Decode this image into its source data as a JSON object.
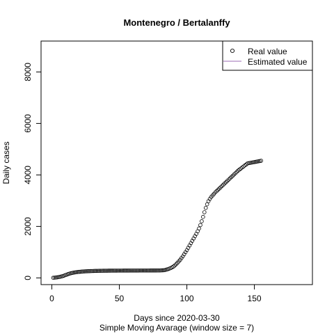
{
  "chart_data": {
    "type": "scatter",
    "title": "Montenegro / Bertalanffy",
    "xlabel": "Days since 2020-03-30",
    "subtitle": "Simple Moving Avarage (window size = 7)",
    "ylabel": "Daily cases",
    "xlim": [
      -8,
      193
    ],
    "ylim": [
      -260,
      9200
    ],
    "xticks": [
      0,
      50,
      100,
      150
    ],
    "yticks": [
      0,
      2000,
      4000,
      6000,
      8000
    ],
    "xtick_labels": [
      "0",
      "50",
      "100",
      "150"
    ],
    "ytick_labels": [
      "0",
      "2000",
      "4000",
      "6000",
      "8000"
    ],
    "grid": false,
    "legend_position": "top-right",
    "series": [
      {
        "name": "Real value",
        "marker": "open-circle",
        "color": "#000000",
        "x": [
          1,
          2,
          3,
          4,
          5,
          6,
          7,
          8,
          9,
          10,
          11,
          12,
          13,
          14,
          15,
          16,
          17,
          18,
          19,
          20,
          21,
          22,
          23,
          24,
          25,
          26,
          27,
          28,
          29,
          30,
          31,
          32,
          33,
          34,
          35,
          36,
          37,
          38,
          39,
          40,
          41,
          42,
          43,
          44,
          45,
          46,
          47,
          48,
          49,
          50,
          51,
          52,
          53,
          54,
          55,
          56,
          57,
          58,
          59,
          60,
          61,
          62,
          63,
          64,
          65,
          66,
          67,
          68,
          69,
          70,
          71,
          72,
          73,
          74,
          75,
          76,
          77,
          78,
          79,
          80,
          81,
          82,
          83,
          84,
          85,
          86,
          87,
          88,
          89,
          90,
          91,
          92,
          93,
          94,
          95,
          96,
          97,
          98,
          99,
          100,
          101,
          102,
          103,
          104,
          105,
          106,
          107,
          108,
          109,
          110,
          111,
          112,
          113,
          114,
          115,
          116,
          117,
          118,
          119,
          120,
          121,
          122,
          123,
          124,
          125,
          126,
          127,
          128,
          129,
          130,
          131,
          132,
          133,
          134,
          135,
          136,
          137,
          138,
          139,
          140,
          141,
          142,
          143,
          144,
          145,
          146,
          147,
          148,
          149,
          150,
          151,
          152,
          153,
          154,
          155
        ],
        "y": [
          5,
          10,
          15,
          22,
          31,
          42,
          55,
          70,
          88,
          108,
          128,
          148,
          165,
          180,
          193,
          204,
          213,
          221,
          228,
          234,
          239,
          244,
          248,
          252,
          255,
          258,
          261,
          263,
          265,
          267,
          269,
          271,
          272,
          274,
          275,
          276,
          277,
          278,
          279,
          280,
          280,
          281,
          281,
          282,
          282,
          283,
          283,
          283,
          284,
          284,
          284,
          284,
          285,
          285,
          285,
          285,
          285,
          286,
          286,
          286,
          286,
          286,
          286,
          286,
          287,
          287,
          287,
          287,
          287,
          287,
          287,
          287,
          288,
          288,
          288,
          288,
          288,
          289,
          289,
          290,
          292,
          295,
          300,
          310,
          325,
          340,
          360,
          380,
          410,
          440,
          480,
          530,
          585,
          640,
          700,
          770,
          840,
          920,
          1000,
          1080,
          1170,
          1260,
          1350,
          1440,
          1530,
          1620,
          1710,
          1810,
          1920,
          2050,
          2200,
          2370,
          2550,
          2720,
          2860,
          2980,
          3070,
          3140,
          3200,
          3260,
          3320,
          3370,
          3420,
          3470,
          3520,
          3570,
          3620,
          3670,
          3720,
          3770,
          3820,
          3870,
          3920,
          3970,
          4020,
          4070,
          4120,
          4170,
          4210,
          4250,
          4290,
          4330,
          4370,
          4410,
          4450,
          4460,
          4470,
          4480,
          4490,
          4500,
          4510,
          4520,
          4530,
          4540,
          4550
        ]
      },
      {
        "name": "Estimated value",
        "line": "solid",
        "color": "#9b6bb5",
        "x": [],
        "y": []
      }
    ]
  }
}
